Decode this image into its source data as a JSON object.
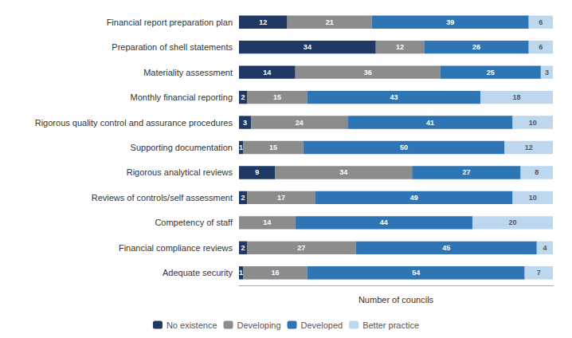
{
  "chart_data": {
    "type": "bar",
    "orientation": "horizontal",
    "stacked": true,
    "data_labels": true,
    "tick_labels": "y",
    "grid": false,
    "legend": "bottom",
    "xlabel": "Number of councils",
    "xlim": [
      0,
      78
    ],
    "categories": [
      "Financial report preparation plan",
      "Preparation of shell statements",
      "Materiality assessment",
      "Monthly financial reporting",
      "Rigorous quality control and assurance procedures",
      "Supporting documentation",
      "Rigorous analytical reviews",
      "Reviews of controls/self assessment",
      "Competency of staff",
      "Financial compliance reviews",
      "Adequate security"
    ],
    "series": [
      {
        "name": "No existence",
        "color": "#1f3864",
        "values": [
          12,
          34,
          14,
          2,
          3,
          1,
          9,
          2,
          0,
          2,
          1
        ]
      },
      {
        "name": "Developing",
        "color": "#8c8c8c",
        "values": [
          21,
          12,
          36,
          15,
          24,
          15,
          34,
          17,
          14,
          27,
          16
        ]
      },
      {
        "name": "Developed",
        "color": "#2e75b6",
        "values": [
          39,
          26,
          25,
          43,
          41,
          50,
          27,
          49,
          44,
          45,
          54
        ]
      },
      {
        "name": "Better practice",
        "color": "#bdd7ee",
        "values": [
          6,
          6,
          3,
          18,
          10,
          12,
          8,
          10,
          20,
          4,
          7
        ]
      }
    ]
  }
}
